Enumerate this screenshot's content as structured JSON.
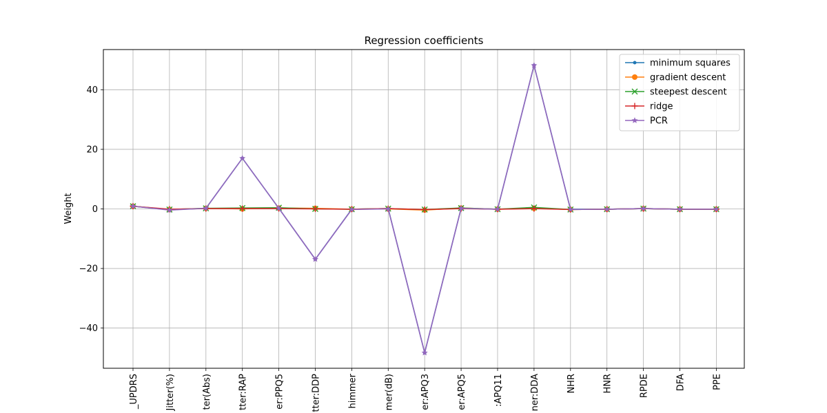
{
  "chart_data": {
    "type": "line",
    "title": "Regression coefficients",
    "xlabel": "",
    "ylabel": "Weight",
    "ylim": [
      -53.5,
      53.5
    ],
    "yticks": [
      -40,
      -20,
      0,
      20,
      40
    ],
    "ytick_labels": [
      "−40",
      "−20",
      "0",
      "20",
      "40"
    ],
    "grid": true,
    "legend_position": "top-right",
    "categories": [
      "_UPDRS",
      "Jitter(%)",
      "ter(Abs)",
      "tter:RAP",
      "er:PPQ5",
      "tter:DDP",
      "himmer",
      "mer(dB)",
      "er:APQ3",
      "er:APQ5",
      ":APQ11",
      "ner:DDA",
      "NHR",
      "HNR",
      "RPDE",
      "DFA",
      "PPE"
    ],
    "series": [
      {
        "name": "minimum squares",
        "color": "#1f77b4",
        "marker": "point",
        "values": [
          0.9,
          -0.3,
          0.2,
          17.0,
          0.2,
          -16.9,
          -0.1,
          0.1,
          -48.3,
          0.2,
          -0.1,
          48.2,
          -0.1,
          -0.1,
          0.1,
          -0.1,
          -0.1
        ]
      },
      {
        "name": "gradient descent",
        "color": "#ff7f0e",
        "marker": "circle",
        "values": [
          0.9,
          -0.2,
          0.2,
          0.0,
          0.3,
          0.2,
          -0.1,
          0.0,
          -0.4,
          0.3,
          -0.1,
          0.2,
          -0.2,
          -0.1,
          0.1,
          -0.1,
          -0.1
        ]
      },
      {
        "name": "steepest descent",
        "color": "#2ca02c",
        "marker": "x",
        "values": [
          0.9,
          -0.2,
          0.2,
          0.3,
          0.4,
          0.0,
          -0.1,
          0.1,
          -0.2,
          0.3,
          -0.1,
          0.5,
          -0.2,
          -0.1,
          0.1,
          -0.1,
          -0.1
        ]
      },
      {
        "name": "ridge",
        "color": "#d62728",
        "marker": "plus",
        "values": [
          0.9,
          -0.1,
          0.1,
          0.1,
          0.1,
          0.0,
          -0.1,
          0.1,
          -0.2,
          0.1,
          -0.1,
          0.1,
          -0.2,
          -0.1,
          0.1,
          -0.1,
          -0.1
        ]
      },
      {
        "name": "PCR",
        "color": "#9467bd",
        "marker": "star",
        "values": [
          0.9,
          -0.4,
          0.2,
          17.0,
          0.2,
          -16.9,
          -0.2,
          0.0,
          -48.3,
          0.2,
          -0.1,
          48.2,
          -0.2,
          -0.1,
          0.1,
          -0.1,
          -0.1
        ]
      }
    ]
  }
}
